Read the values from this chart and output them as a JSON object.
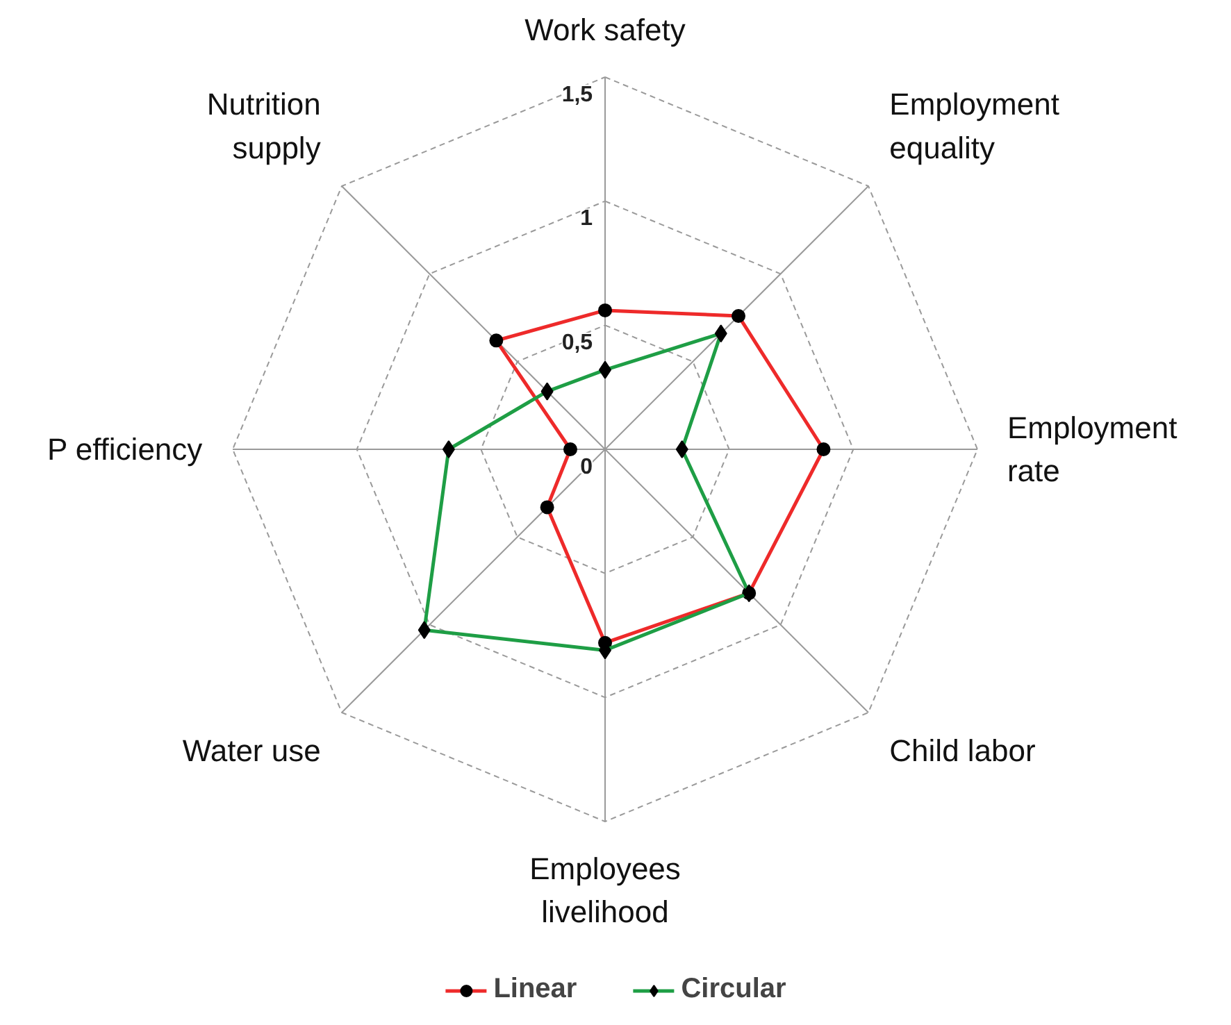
{
  "chart_data": {
    "type": "radar",
    "categories": [
      "Work safety",
      "Employment equality",
      "Employment rate",
      "Child labor",
      "Employees livelihood",
      "Water use",
      "P efficiency",
      "Nutrition supply"
    ],
    "series": [
      {
        "name": "Linear",
        "color": "#ee2a2a",
        "marker": "circle",
        "values": [
          0.56,
          0.76,
          0.88,
          0.82,
          0.78,
          0.33,
          0.14,
          0.62
        ]
      },
      {
        "name": "Circular",
        "color": "#1e9e45",
        "marker": "diamond",
        "values": [
          0.32,
          0.66,
          0.31,
          0.82,
          0.81,
          1.03,
          0.63,
          0.33
        ]
      }
    ],
    "ylim": [
      0,
      1.5
    ],
    "yticks": [
      0,
      {
        "value": 0.5,
        "label": "0,5"
      },
      1,
      {
        "value": 1.5,
        "label": "1,5"
      }
    ],
    "grid": true,
    "legend": "bottom"
  }
}
